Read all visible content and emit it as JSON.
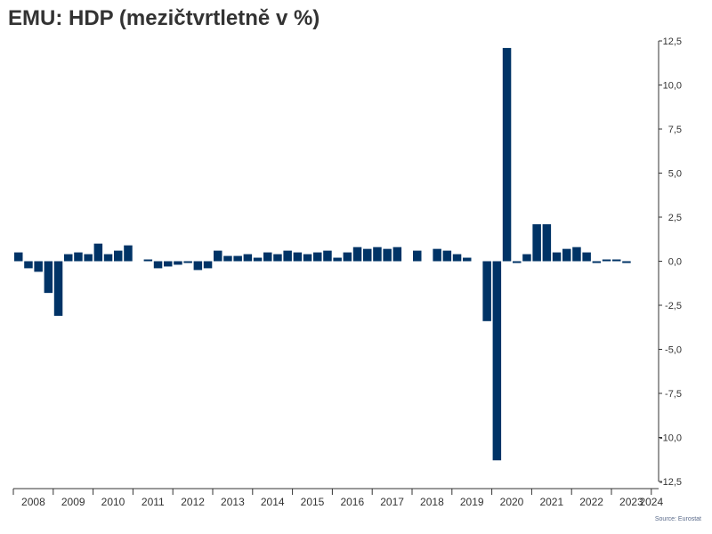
{
  "title": "EMU: HDP (mezičtvrtletně v %)",
  "source": "Source: Eurostat",
  "colors": {
    "bar": "#003366",
    "axis": "#333333",
    "text": "#333333"
  },
  "chart_data": {
    "type": "bar",
    "title": "EMU: HDP (mezičtvrtletně v %)",
    "xlabel": "",
    "ylabel": "",
    "ylim": [
      -12.5,
      12.5
    ],
    "y_ticks": [
      12.5,
      10.0,
      7.5,
      5.0,
      2.5,
      0.0,
      -2.5,
      -5.0,
      -7.5,
      -10.0,
      -12.5
    ],
    "y_tick_labels": [
      "12,5",
      "10,0",
      "7,5",
      "5,0",
      "2,5",
      "0,0",
      "-2,5",
      "-5,0",
      "-7,5",
      "-10,0",
      "-12,5"
    ],
    "y_axis_position": "right",
    "grid": false,
    "legend": "none",
    "x_tick_labels": [
      "2008",
      "2009",
      "2010",
      "2011",
      "2012",
      "2013",
      "2014",
      "2015",
      "2016",
      "2017",
      "2018",
      "2019",
      "2020",
      "2021",
      "2022",
      "2023",
      "2024"
    ],
    "categories": [
      "2008 Q1",
      "2008 Q2",
      "2008 Q3",
      "2008 Q4",
      "2009 Q1",
      "2009 Q2",
      "2009 Q3",
      "2009 Q4",
      "2010 Q1",
      "2010 Q2",
      "2010 Q3",
      "2010 Q4",
      "2011 Q1",
      "2011 Q2",
      "2011 Q3",
      "2011 Q4",
      "2012 Q1",
      "2012 Q2",
      "2012 Q3",
      "2012 Q4",
      "2013 Q1",
      "2013 Q2",
      "2013 Q3",
      "2013 Q4",
      "2014 Q1",
      "2014 Q2",
      "2014 Q3",
      "2014 Q4",
      "2015 Q1",
      "2015 Q2",
      "2015 Q3",
      "2015 Q4",
      "2016 Q1",
      "2016 Q2",
      "2016 Q3",
      "2016 Q4",
      "2017 Q1",
      "2017 Q2",
      "2017 Q3",
      "2017 Q4",
      "2018 Q1",
      "2018 Q2",
      "2018 Q3",
      "2018 Q4",
      "2019 Q1",
      "2019 Q2",
      "2019 Q3",
      "2019 Q4",
      "2020 Q1",
      "2020 Q2",
      "2020 Q3",
      "2020 Q4",
      "2021 Q1",
      "2021 Q2",
      "2021 Q3",
      "2021 Q4",
      "2022 Q1",
      "2022 Q2",
      "2022 Q3",
      "2022 Q4",
      "2023 Q1",
      "2023 Q2",
      "2023 Q3",
      "2023 Q4"
    ],
    "values": [
      0.5,
      -0.4,
      -0.6,
      -1.8,
      -3.1,
      0.4,
      0.5,
      0.4,
      1.0,
      0.4,
      0.6,
      0.9,
      0.0,
      0.1,
      -0.4,
      -0.3,
      -0.2,
      -0.1,
      -0.5,
      -0.4,
      0.6,
      0.3,
      0.3,
      0.4,
      0.2,
      0.5,
      0.4,
      0.6,
      0.5,
      0.4,
      0.5,
      0.6,
      0.2,
      0.5,
      0.8,
      0.7,
      0.8,
      0.7,
      0.8,
      0.0,
      0.6,
      0.0,
      0.7,
      0.6,
      0.4,
      0.2,
      0.0,
      -3.4,
      -11.3,
      12.1,
      -0.1,
      0.4,
      2.1,
      2.1,
      0.5,
      0.7,
      0.8,
      0.5,
      -0.1,
      0.1,
      0.1,
      -0.1,
      0.0,
      0.0
    ]
  }
}
